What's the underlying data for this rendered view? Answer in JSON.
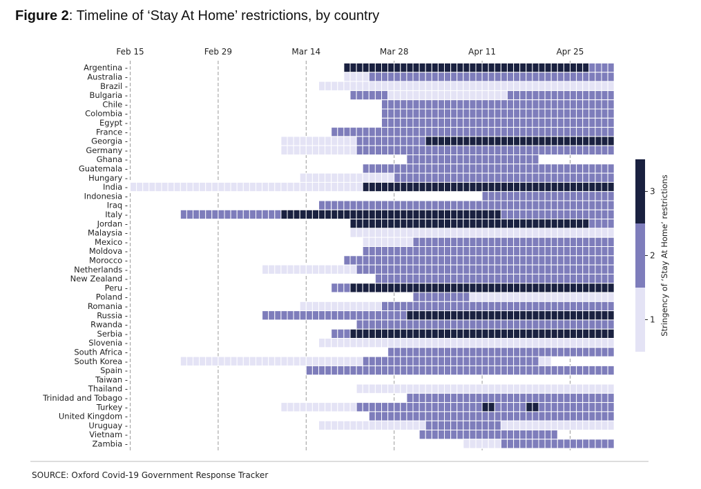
{
  "figure": {
    "label": "Figure 2",
    "title": "Timeline of ‘Stay At Home’ restrictions, by country"
  },
  "source": "SOURCE: Oxford Covid-19 Government Response Tracker",
  "colors": {
    "level_1": "#e4e3f5",
    "level_2": "#7e7dbb",
    "level_3": "#1a2140",
    "grid": "#9a9a9a",
    "text": "#222222"
  },
  "chart_data": {
    "type": "heatmap",
    "x_axis": {
      "start_date": "2020-02-15",
      "end_date": "2020-05-01",
      "ticks": [
        {
          "date": "2020-02-15",
          "label": "Feb 15"
        },
        {
          "date": "2020-02-29",
          "label": "Feb 29"
        },
        {
          "date": "2020-03-14",
          "label": "Mar 14"
        },
        {
          "date": "2020-03-28",
          "label": "Mar 28"
        },
        {
          "date": "2020-04-11",
          "label": "Apr 11"
        },
        {
          "date": "2020-04-25",
          "label": "Apr 25"
        }
      ],
      "grid": "dashed vertical"
    },
    "colorbar": {
      "label": "Stringency of ‘Stay At Home’ restrictions",
      "ticks": [
        1,
        2,
        3
      ],
      "position": "right"
    },
    "rows": [
      {
        "country": "Argentina",
        "periods": [
          {
            "from": "2020-03-20",
            "to": "2020-04-27",
            "level": 3
          },
          {
            "from": "2020-04-28",
            "to": "2020-05-01",
            "level": 2
          }
        ]
      },
      {
        "country": "Australia",
        "periods": [
          {
            "from": "2020-03-20",
            "to": "2020-03-23",
            "level": 1
          },
          {
            "from": "2020-03-24",
            "to": "2020-05-01",
            "level": 2
          }
        ]
      },
      {
        "country": "Brazil",
        "periods": [
          {
            "from": "2020-03-16",
            "to": "2020-05-01",
            "level": 1
          }
        ]
      },
      {
        "country": "Bulgaria",
        "periods": [
          {
            "from": "2020-03-21",
            "to": "2020-03-26",
            "level": 2
          },
          {
            "from": "2020-03-27",
            "to": "2020-04-14",
            "level": 1
          },
          {
            "from": "2020-04-15",
            "to": "2020-05-01",
            "level": 2
          }
        ]
      },
      {
        "country": "Chile",
        "periods": [
          {
            "from": "2020-03-26",
            "to": "2020-05-01",
            "level": 2
          }
        ]
      },
      {
        "country": "Colombia",
        "periods": [
          {
            "from": "2020-03-26",
            "to": "2020-05-01",
            "level": 2
          }
        ]
      },
      {
        "country": "Egypt",
        "periods": [
          {
            "from": "2020-03-26",
            "to": "2020-05-01",
            "level": 2
          }
        ]
      },
      {
        "country": "France",
        "periods": [
          {
            "from": "2020-03-18",
            "to": "2020-05-01",
            "level": 2
          }
        ]
      },
      {
        "country": "Georgia",
        "periods": [
          {
            "from": "2020-03-10",
            "to": "2020-03-21",
            "level": 1
          },
          {
            "from": "2020-03-22",
            "to": "2020-04-01",
            "level": 2
          },
          {
            "from": "2020-04-02",
            "to": "2020-05-01",
            "level": 3
          }
        ]
      },
      {
        "country": "Germany",
        "periods": [
          {
            "from": "2020-03-10",
            "to": "2020-03-21",
            "level": 1
          },
          {
            "from": "2020-03-22",
            "to": "2020-05-01",
            "level": 2
          }
        ]
      },
      {
        "country": "Ghana",
        "periods": [
          {
            "from": "2020-03-30",
            "to": "2020-04-19",
            "level": 2
          }
        ]
      },
      {
        "country": "Guatemala",
        "periods": [
          {
            "from": "2020-03-23",
            "to": "2020-05-01",
            "level": 2
          }
        ]
      },
      {
        "country": "Hungary",
        "periods": [
          {
            "from": "2020-03-13",
            "to": "2020-03-27",
            "level": 1
          },
          {
            "from": "2020-03-28",
            "to": "2020-05-01",
            "level": 2
          }
        ]
      },
      {
        "country": "India",
        "periods": [
          {
            "from": "2020-02-15",
            "to": "2020-03-22",
            "level": 1
          },
          {
            "from": "2020-03-23",
            "to": "2020-05-01",
            "level": 3
          }
        ]
      },
      {
        "country": "Indonesia",
        "periods": [
          {
            "from": "2020-04-11",
            "to": "2020-05-01",
            "level": 2
          }
        ]
      },
      {
        "country": "Iraq",
        "periods": [
          {
            "from": "2020-03-16",
            "to": "2020-05-01",
            "level": 2
          }
        ]
      },
      {
        "country": "Italy",
        "periods": [
          {
            "from": "2020-02-23",
            "to": "2020-03-09",
            "level": 2
          },
          {
            "from": "2020-03-10",
            "to": "2020-04-13",
            "level": 3
          },
          {
            "from": "2020-04-14",
            "to": "2020-05-01",
            "level": 2
          }
        ]
      },
      {
        "country": "Jordan",
        "periods": [
          {
            "from": "2020-03-21",
            "to": "2020-04-27",
            "level": 3
          },
          {
            "from": "2020-04-28",
            "to": "2020-05-01",
            "level": 2
          }
        ]
      },
      {
        "country": "Malaysia",
        "periods": [
          {
            "from": "2020-03-21",
            "to": "2020-05-01",
            "level": 1
          }
        ]
      },
      {
        "country": "Mexico",
        "periods": [
          {
            "from": "2020-03-23",
            "to": "2020-03-30",
            "level": 1
          },
          {
            "from": "2020-03-31",
            "to": "2020-05-01",
            "level": 2
          }
        ]
      },
      {
        "country": "Moldova",
        "periods": [
          {
            "from": "2020-03-23",
            "to": "2020-05-01",
            "level": 2
          }
        ]
      },
      {
        "country": "Morocco",
        "periods": [
          {
            "from": "2020-03-20",
            "to": "2020-05-01",
            "level": 2
          }
        ]
      },
      {
        "country": "Netherlands",
        "periods": [
          {
            "from": "2020-03-07",
            "to": "2020-03-21",
            "level": 1
          },
          {
            "from": "2020-03-22",
            "to": "2020-05-01",
            "level": 2
          }
        ]
      },
      {
        "country": "New Zealand",
        "periods": [
          {
            "from": "2020-03-25",
            "to": "2020-05-01",
            "level": 2
          }
        ]
      },
      {
        "country": "Peru",
        "periods": [
          {
            "from": "2020-03-18",
            "to": "2020-03-20",
            "level": 2
          },
          {
            "from": "2020-03-21",
            "to": "2020-05-01",
            "level": 3
          }
        ]
      },
      {
        "country": "Poland",
        "periods": [
          {
            "from": "2020-03-31",
            "to": "2020-04-08",
            "level": 2
          },
          {
            "from": "2020-04-09",
            "to": "2020-05-01",
            "level": 1
          }
        ]
      },
      {
        "country": "Romania",
        "periods": [
          {
            "from": "2020-03-13",
            "to": "2020-03-25",
            "level": 1
          },
          {
            "from": "2020-03-26",
            "to": "2020-05-01",
            "level": 2
          }
        ]
      },
      {
        "country": "Russia",
        "periods": [
          {
            "from": "2020-03-07",
            "to": "2020-03-29",
            "level": 2
          },
          {
            "from": "2020-03-30",
            "to": "2020-05-01",
            "level": 3
          }
        ]
      },
      {
        "country": "Rwanda",
        "periods": [
          {
            "from": "2020-03-22",
            "to": "2020-05-01",
            "level": 2
          }
        ]
      },
      {
        "country": "Serbia",
        "periods": [
          {
            "from": "2020-03-18",
            "to": "2020-03-20",
            "level": 2
          },
          {
            "from": "2020-03-21",
            "to": "2020-05-01",
            "level": 3
          }
        ]
      },
      {
        "country": "Slovenia",
        "periods": [
          {
            "from": "2020-03-16",
            "to": "2020-05-01",
            "level": 1
          }
        ]
      },
      {
        "country": "South Africa",
        "periods": [
          {
            "from": "2020-03-27",
            "to": "2020-05-01",
            "level": 2
          }
        ]
      },
      {
        "country": "South Korea",
        "periods": [
          {
            "from": "2020-02-23",
            "to": "2020-03-22",
            "level": 1
          },
          {
            "from": "2020-03-23",
            "to": "2020-04-19",
            "level": 2
          },
          {
            "from": "2020-04-20",
            "to": "2020-04-21",
            "level": 1
          }
        ]
      },
      {
        "country": "Spain",
        "periods": [
          {
            "from": "2020-03-14",
            "to": "2020-05-01",
            "level": 2
          }
        ]
      },
      {
        "country": "Taiwan",
        "periods": []
      },
      {
        "country": "Thailand",
        "periods": [
          {
            "from": "2020-03-22",
            "to": "2020-05-01",
            "level": 1
          }
        ]
      },
      {
        "country": "Trinidad and Tobago",
        "periods": [
          {
            "from": "2020-03-30",
            "to": "2020-05-01",
            "level": 2
          }
        ]
      },
      {
        "country": "Turkey",
        "periods": [
          {
            "from": "2020-03-10",
            "to": "2020-03-21",
            "level": 1
          },
          {
            "from": "2020-03-22",
            "to": "2020-05-01",
            "level": 2
          },
          {
            "from": "2020-04-11",
            "to": "2020-04-12",
            "level": 3
          },
          {
            "from": "2020-04-18",
            "to": "2020-04-19",
            "level": 3
          }
        ]
      },
      {
        "country": "United Kingdom",
        "periods": [
          {
            "from": "2020-03-24",
            "to": "2020-05-01",
            "level": 2
          }
        ]
      },
      {
        "country": "Uruguay",
        "periods": [
          {
            "from": "2020-03-16",
            "to": "2020-04-01",
            "level": 1
          },
          {
            "from": "2020-04-02",
            "to": "2020-04-13",
            "level": 2
          },
          {
            "from": "2020-04-14",
            "to": "2020-05-01",
            "level": 1
          }
        ]
      },
      {
        "country": "Vietnam",
        "periods": [
          {
            "from": "2020-04-01",
            "to": "2020-04-22",
            "level": 2
          }
        ]
      },
      {
        "country": "Zambia",
        "periods": [
          {
            "from": "2020-04-08",
            "to": "2020-04-13",
            "level": 1
          },
          {
            "from": "2020-04-14",
            "to": "2020-05-01",
            "level": 2
          }
        ]
      }
    ]
  }
}
